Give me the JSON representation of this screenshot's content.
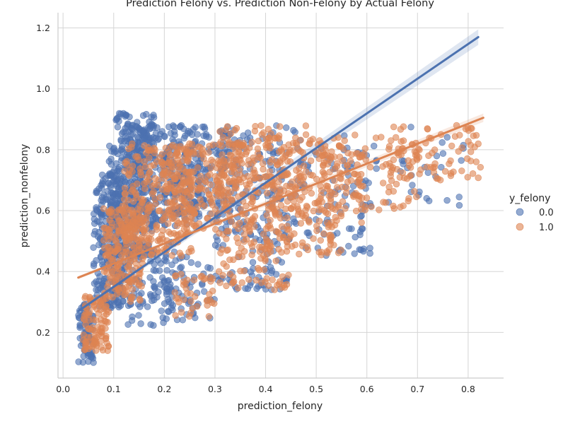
{
  "chart_data": {
    "type": "scatter",
    "title": "Prediction Felony vs. Prediction Non-Felony by Actual Felony",
    "xlabel": "prediction_felony",
    "ylabel": "prediction_nonfelony",
    "xlim": [
      -0.01,
      0.87
    ],
    "ylim": [
      0.05,
      1.25
    ],
    "xticks": [
      0.0,
      0.1,
      0.2,
      0.3,
      0.4,
      0.5,
      0.6,
      0.7,
      0.8
    ],
    "xtick_labels": [
      "0.0",
      "0.1",
      "0.2",
      "0.3",
      "0.4",
      "0.5",
      "0.6",
      "0.7",
      "0.8"
    ],
    "yticks": [
      0.2,
      0.4,
      0.6,
      0.8,
      1.0,
      1.2
    ],
    "ytick_labels": [
      "0.2",
      "0.4",
      "0.6",
      "0.8",
      "1.0",
      "1.2"
    ],
    "grid": true,
    "legend": {
      "title": "y_felony",
      "placement": "right",
      "entries": [
        "0.0",
        "1.0"
      ]
    },
    "series": [
      {
        "name": "0.0",
        "color": "#4c72b0",
        "regression_line": {
          "x": [
            0.03,
            0.82
          ],
          "y": [
            0.27,
            1.17
          ]
        },
        "clusters": [
          {
            "x": [
              0.03,
              0.06
            ],
            "y": [
              0.1,
              0.3
            ],
            "n": 80
          },
          {
            "x": [
              0.06,
              0.12
            ],
            "y": [
              0.28,
              0.72
            ],
            "n": 250
          },
          {
            "x": [
              0.09,
              0.18
            ],
            "y": [
              0.45,
              0.92
            ],
            "n": 320
          },
          {
            "x": [
              0.12,
              0.28
            ],
            "y": [
              0.55,
              0.88
            ],
            "n": 300
          },
          {
            "x": [
              0.2,
              0.35
            ],
            "y": [
              0.58,
              0.86
            ],
            "n": 140
          },
          {
            "x": [
              0.3,
              0.48
            ],
            "y": [
              0.62,
              0.88
            ],
            "n": 70
          },
          {
            "x": [
              0.12,
              0.22
            ],
            "y": [
              0.22,
              0.5
            ],
            "n": 100
          },
          {
            "x": [
              0.2,
              0.3
            ],
            "y": [
              0.24,
              0.45
            ],
            "n": 60
          },
          {
            "x": [
              0.3,
              0.45
            ],
            "y": [
              0.34,
              0.6
            ],
            "n": 90
          },
          {
            "x": [
              0.38,
              0.62
            ],
            "y": [
              0.45,
              0.82
            ],
            "n": 110
          },
          {
            "x": [
              0.55,
              0.8
            ],
            "y": [
              0.6,
              0.88
            ],
            "n": 40
          }
        ]
      },
      {
        "name": "1.0",
        "color": "#dd8452",
        "regression_line": {
          "x": [
            0.03,
            0.83
          ],
          "y": [
            0.38,
            0.905
          ]
        },
        "clusters": [
          {
            "x": [
              0.04,
              0.09
            ],
            "y": [
              0.14,
              0.32
            ],
            "n": 100
          },
          {
            "x": [
              0.08,
              0.16
            ],
            "y": [
              0.3,
              0.62
            ],
            "n": 200
          },
          {
            "x": [
              0.12,
              0.26
            ],
            "y": [
              0.45,
              0.82
            ],
            "n": 260
          },
          {
            "x": [
              0.2,
              0.38
            ],
            "y": [
              0.52,
              0.82
            ],
            "n": 220
          },
          {
            "x": [
              0.3,
              0.48
            ],
            "y": [
              0.6,
              0.88
            ],
            "n": 160
          },
          {
            "x": [
              0.4,
              0.6
            ],
            "y": [
              0.55,
              0.85
            ],
            "n": 140
          },
          {
            "x": [
              0.5,
              0.7
            ],
            "y": [
              0.6,
              0.85
            ],
            "n": 110
          },
          {
            "x": [
              0.65,
              0.83
            ],
            "y": [
              0.7,
              0.89
            ],
            "n": 70
          },
          {
            "x": [
              0.3,
              0.45
            ],
            "y": [
              0.34,
              0.55
            ],
            "n": 90
          },
          {
            "x": [
              0.4,
              0.55
            ],
            "y": [
              0.45,
              0.65
            ],
            "n": 70
          },
          {
            "x": [
              0.22,
              0.3
            ],
            "y": [
              0.25,
              0.4
            ],
            "n": 40
          }
        ]
      }
    ]
  }
}
